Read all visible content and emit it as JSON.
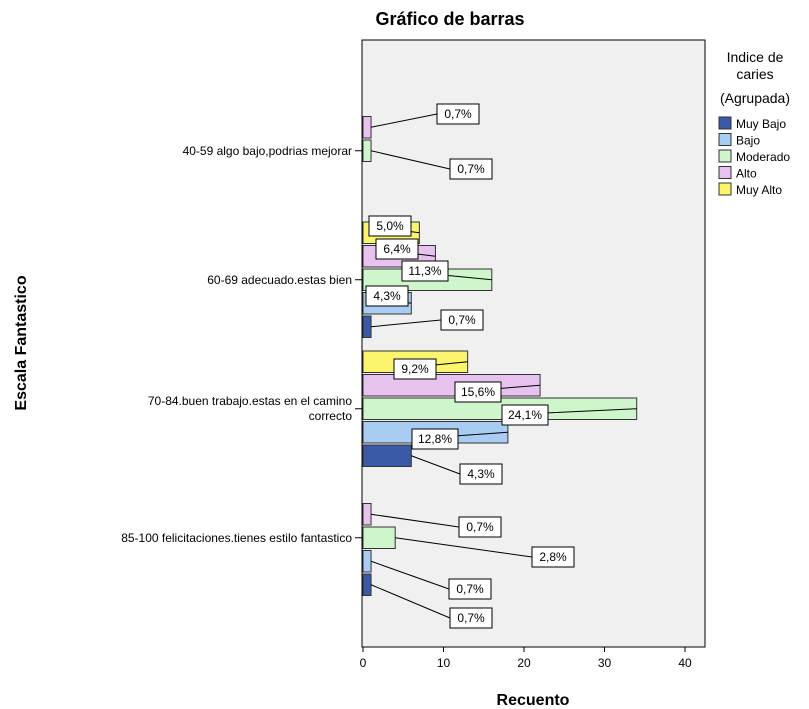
{
  "chart_data": {
    "type": "bar",
    "orientation": "horizontal",
    "title": "Gráfico de barras",
    "xlabel": "Recuento",
    "ylabel": "Escala Fantastico",
    "xlim": [
      0,
      42
    ],
    "xticks": [
      "0",
      "10",
      "20",
      "30",
      "40"
    ],
    "grid": false,
    "legend_placement": "right",
    "legend_title": "Indice de caries (Agrupada)",
    "categories": [
      "40-59 algo bajo,podrias mejorar",
      "60-69 adecuado.estas bien",
      "70-84.buen trabajo.estas en el camino correcto",
      "85-100 felicitaciones.tienes estilo fantastico"
    ],
    "series": [
      {
        "name": "Muy Bajo",
        "color": "#3a5aa8",
        "values": [
          0,
          1,
          6,
          1
        ],
        "labels": [
          "",
          "0,7%",
          "4,3%",
          "0,7%"
        ]
      },
      {
        "name": "Bajo",
        "color": "#a9cdf2",
        "values": [
          0,
          6,
          18,
          1
        ],
        "labels": [
          "",
          "4,3%",
          "12,8%",
          "0,7%"
        ]
      },
      {
        "name": "Moderado",
        "color": "#cff5cc",
        "values": [
          1,
          16,
          34,
          4
        ],
        "labels": [
          "0,7%",
          "11,3%",
          "24,1%",
          "2,8%"
        ]
      },
      {
        "name": "Alto",
        "color": "#e7c2ef",
        "values": [
          1,
          9,
          22,
          1
        ],
        "labels": [
          "0,7%",
          "6,4%",
          "15,6%",
          "0,7%"
        ]
      },
      {
        "name": "Muy Alto",
        "color": "#fbf56e",
        "values": [
          0,
          7,
          13,
          0
        ],
        "labels": [
          "",
          "5,0%",
          "9,2%",
          ""
        ]
      }
    ]
  }
}
